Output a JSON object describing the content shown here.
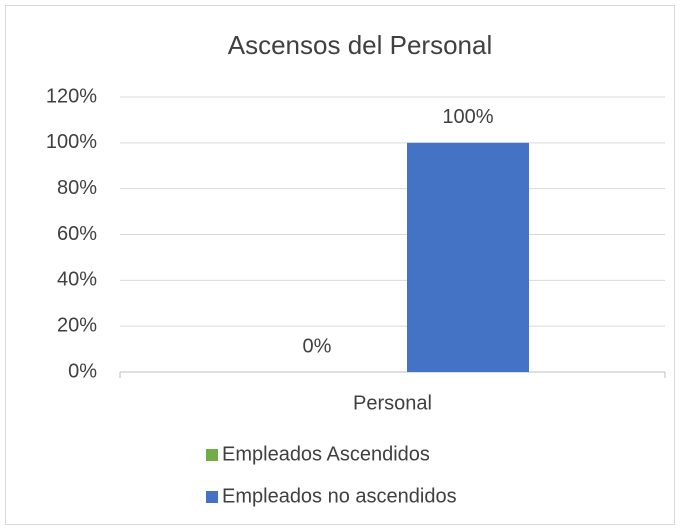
{
  "chart_data": {
    "type": "bar",
    "title": "Ascensos del Personal",
    "categories": [
      "Personal"
    ],
    "series": [
      {
        "name": "Empleados Ascendidos",
        "color": "#70ad47",
        "values": [
          0
        ],
        "value_labels": [
          "0%"
        ]
      },
      {
        "name": "Empleados no ascendidos",
        "color": "#4472c4",
        "values": [
          100
        ],
        "value_labels": [
          "100%"
        ]
      }
    ],
    "ylim": [
      0,
      120
    ],
    "yticks": [
      {
        "value": 0,
        "label": "0%"
      },
      {
        "value": 20,
        "label": "20%"
      },
      {
        "value": 40,
        "label": "40%"
      },
      {
        "value": 60,
        "label": "60%"
      },
      {
        "value": 80,
        "label": "80%"
      },
      {
        "value": 100,
        "label": "100%"
      },
      {
        "value": 120,
        "label": "120%"
      }
    ],
    "grid": true,
    "legend": "bottom"
  }
}
